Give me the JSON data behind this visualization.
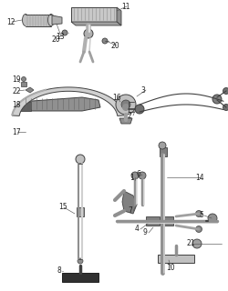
{
  "bg_color": "#ffffff",
  "line_color": "#404040",
  "text_color": "#222222",
  "fig_width": 2.51,
  "fig_height": 3.2,
  "dpi": 100
}
